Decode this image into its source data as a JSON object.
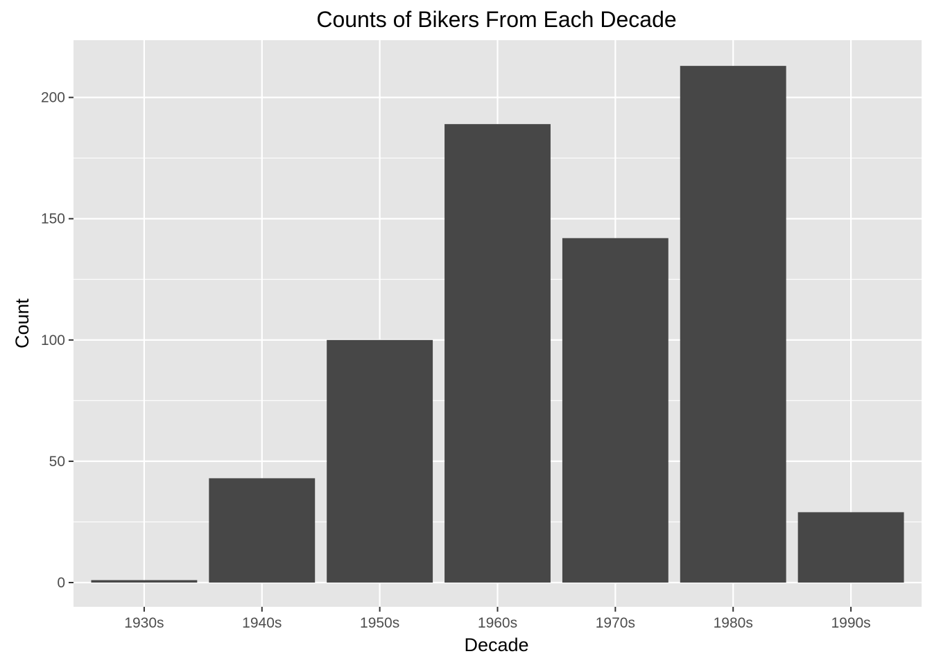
{
  "chart_data": {
    "type": "bar",
    "title": "Counts of Bikers From Each Decade",
    "xlabel": "Decade",
    "ylabel": "Count",
    "categories": [
      "1930s",
      "1940s",
      "1950s",
      "1960s",
      "1970s",
      "1980s",
      "1990s"
    ],
    "values": [
      1,
      43,
      100,
      189,
      142,
      213,
      29
    ],
    "ylim": [
      -10,
      223.6
    ],
    "yticks": [
      0,
      50,
      100,
      150,
      200
    ],
    "ytick_labels": [
      "0",
      "50",
      "100",
      "150",
      "200"
    ],
    "grid": true,
    "legend": "none",
    "colors": {
      "bar": "#474747",
      "panel": "#e5e5e5",
      "grid": "#ffffff",
      "tick_text": "#4d4d4d",
      "tick_mark": "#333333"
    }
  }
}
